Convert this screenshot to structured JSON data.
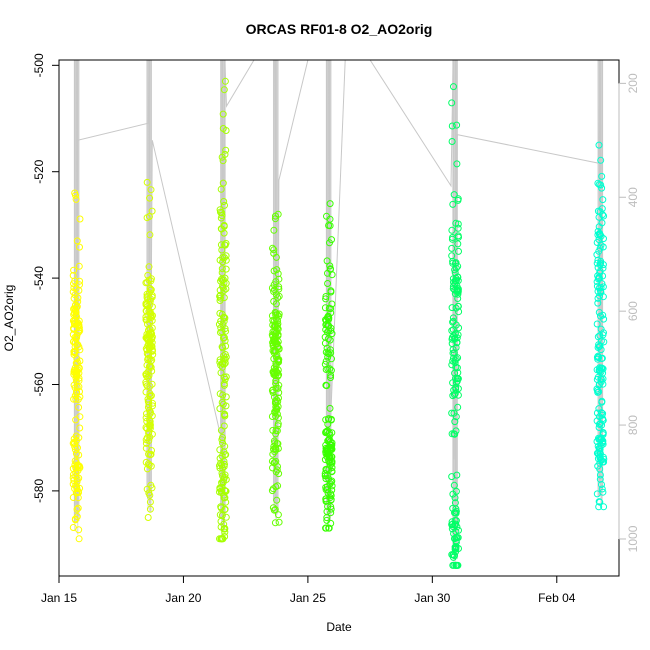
{
  "chart_data": {
    "type": "scatter",
    "title": "ORCAS RF01-8 O2_AO2orig",
    "xlabel": "Date",
    "ylabel": "O2_AO2orig",
    "xlim": [
      "2016-01-15T00:00",
      "2016-02-06T12:00"
    ],
    "ylim": [
      -596,
      -499
    ],
    "y2lim": [
      1065,
      159
    ],
    "x_ticks": [
      {
        "label": "Jan 15",
        "date": "2016-01-15T00:00"
      },
      {
        "label": "Jan 20",
        "date": "2016-01-20T00:00"
      },
      {
        "label": "Jan 25",
        "date": "2016-01-25T00:00"
      },
      {
        "label": "Jan 30",
        "date": "2016-01-30T00:00"
      },
      {
        "label": "Feb 04",
        "date": "2016-02-04T00:00"
      }
    ],
    "y_ticks": [
      -500,
      -520,
      -540,
      -560,
      -580
    ],
    "y2_ticks": [
      200,
      400,
      600,
      800,
      1000
    ],
    "grid": false,
    "legend": "none",
    "series_colors": [
      "#ffff00",
      "#d4ff00",
      "#a6ff00",
      "#66ff00",
      "#38ff00",
      "#00ff66",
      "#00ff9e",
      "#00ffd0"
    ],
    "pressure_line_color": "#c8c8c8",
    "series": [
      {
        "date": "2016-01-15T17:00",
        "color": "#ffff00",
        "o2_min": -589,
        "o2_max": -524,
        "clusters": [
          [
            -546,
            5
          ],
          [
            -557,
            4
          ],
          [
            -576,
            5
          ]
        ]
      },
      {
        "date": "2016-01-18T15:00",
        "color": "#d4ff00",
        "o2_min": -585,
        "o2_max": -522,
        "clusters": [
          [
            -546,
            5
          ],
          [
            -553,
            4
          ],
          [
            -567,
            6
          ]
        ]
      },
      {
        "date": "2016-01-21T14:00",
        "color": "#a6ff00",
        "o2_min": -589,
        "o2_max": -503,
        "clusters": [
          [
            -538,
            8
          ],
          [
            -560,
            8
          ],
          [
            -582,
            5
          ]
        ]
      },
      {
        "date": "2016-01-23T17:00",
        "color": "#66ff00",
        "o2_min": -586,
        "o2_max": -528,
        "clusters": [
          [
            -548,
            6
          ],
          [
            -556,
            5
          ],
          [
            -570,
            6
          ]
        ]
      },
      {
        "date": "2016-01-25T20:00",
        "color": "#38ff00",
        "o2_min": -587,
        "o2_max": -526,
        "clusters": [
          [
            -552,
            8
          ],
          [
            -572,
            2
          ],
          [
            -580,
            5
          ]
        ]
      },
      {
        "date": "2016-01-30T22:00",
        "color": "#00ff66",
        "o2_min": -594,
        "o2_max": -504,
        "clusters": [
          [
            -540,
            9
          ],
          [
            -555,
            7
          ],
          [
            -588,
            5
          ]
        ]
      },
      {
        "date": "2016-02-05T18:00",
        "color": "#00ffd0",
        "o2_min": -583,
        "o2_max": -515,
        "clusters": [
          [
            -535,
            6
          ],
          [
            -555,
            6
          ],
          [
            -573,
            5
          ]
        ]
      }
    ],
    "pressure_trace": [
      {
        "date": "2016-01-15T17:00",
        "p": 160
      },
      {
        "date": "2016-01-15T17:20",
        "p": 830
      },
      {
        "date": "2016-01-15T18:00",
        "p": 300
      },
      {
        "date": "2016-01-18T14:00",
        "p": 270
      },
      {
        "date": "2016-01-18T15:00",
        "p": 160
      },
      {
        "date": "2016-01-18T16:00",
        "p": 810
      },
      {
        "date": "2016-01-18T18:00",
        "p": 300
      },
      {
        "date": "2016-01-21T12:00",
        "p": 820
      },
      {
        "date": "2016-01-21T16:00",
        "p": 160
      },
      {
        "date": "2016-01-21T17:30",
        "p": 240
      },
      {
        "date": "2016-01-22T20:00",
        "p": 159
      },
      {
        "date": "2016-01-23T16:00",
        "p": 159
      },
      {
        "date": "2016-01-23T19:00",
        "p": 860
      },
      {
        "date": "2016-01-23T20:00",
        "p": 370
      },
      {
        "date": "2016-01-25T00:00",
        "p": 159
      },
      {
        "date": "2016-01-25T20:00",
        "p": 159
      },
      {
        "date": "2016-01-25T21:00",
        "p": 830
      },
      {
        "date": "2016-01-26T12:00",
        "p": 159
      },
      {
        "date": "2016-01-27T12:00",
        "p": 159
      },
      {
        "date": "2016-01-30T18:00",
        "p": 380
      },
      {
        "date": "2016-01-30T20:00",
        "p": 160
      },
      {
        "date": "2016-01-30T21:00",
        "p": 860
      },
      {
        "date": "2016-01-31T00:00",
        "p": 290
      },
      {
        "date": "2016-02-05T16:00",
        "p": 340
      },
      {
        "date": "2016-02-05T18:00",
        "p": 160
      },
      {
        "date": "2016-02-05T20:00",
        "p": 840
      }
    ]
  }
}
